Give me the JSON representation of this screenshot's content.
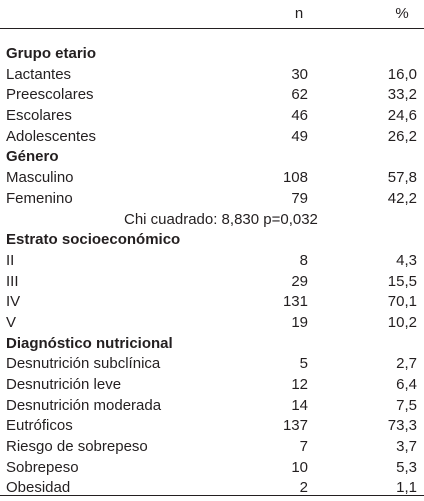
{
  "table": {
    "columns": {
      "n": "n",
      "pct": "%"
    },
    "rows": [
      {
        "type": "section",
        "label": "Grupo etario"
      },
      {
        "type": "data",
        "label": "Lactantes",
        "n": "30",
        "pct": "16,0"
      },
      {
        "type": "data",
        "label": "Preescolares",
        "n": "62",
        "pct": "33,2"
      },
      {
        "type": "data",
        "label": "Escolares",
        "n": "46",
        "pct": "24,6"
      },
      {
        "type": "data",
        "label": "Adolescentes",
        "n": "49",
        "pct": "26,2"
      },
      {
        "type": "section",
        "label": "Género"
      },
      {
        "type": "data",
        "label": "Masculino",
        "n": "108",
        "pct": "57,8"
      },
      {
        "type": "data",
        "label": "Femenino",
        "n": "79",
        "pct": "42,2"
      },
      {
        "type": "note",
        "label": "Chi cuadrado: 8,830  p=0,032"
      },
      {
        "type": "section",
        "label": "Estrato socioeconómico"
      },
      {
        "type": "data",
        "label": "II",
        "n": "8",
        "pct": "4,3"
      },
      {
        "type": "data",
        "label": "III",
        "n": "29",
        "pct": "15,5"
      },
      {
        "type": "data",
        "label": "IV",
        "n": "131",
        "pct": "70,1"
      },
      {
        "type": "data",
        "label": "V",
        "n": "19",
        "pct": "10,2"
      },
      {
        "type": "section",
        "label": "Diagnóstico nutricional"
      },
      {
        "type": "data",
        "label": "Desnutrición subclínica",
        "n": "5",
        "pct": "2,7"
      },
      {
        "type": "data",
        "label": "Desnutrición leve",
        "n": "12",
        "pct": "6,4"
      },
      {
        "type": "data",
        "label": "Desnutrición moderada",
        "n": "14",
        "pct": "7,5"
      },
      {
        "type": "data",
        "label": "Eutróficos",
        "n": "137",
        "pct": "73,3"
      },
      {
        "type": "data",
        "label": "Riesgo de sobrepeso",
        "n": "7",
        "pct": "3,7"
      },
      {
        "type": "data",
        "label": "Sobrepeso",
        "n": "10",
        "pct": "5,3"
      },
      {
        "type": "data",
        "label": "Obesidad",
        "n": "2",
        "pct": "1,1"
      }
    ]
  }
}
